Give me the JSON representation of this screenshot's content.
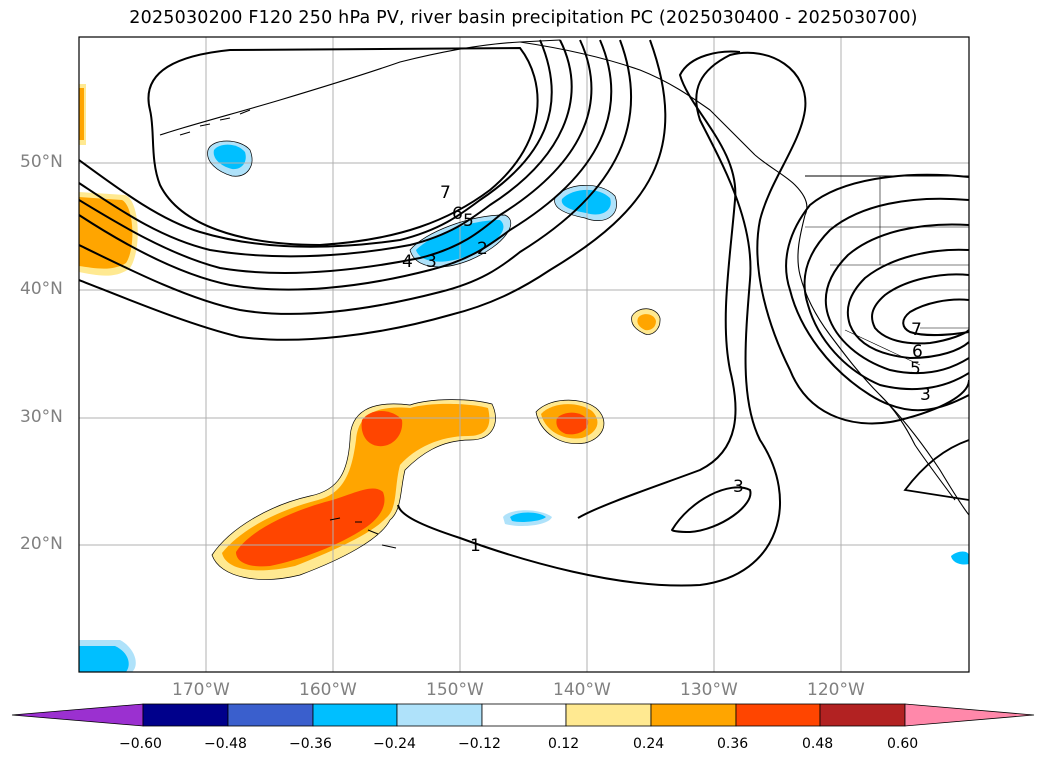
{
  "title": "2025030200 F120 250 hPa PV, river basin precipitation PC (2025030400 - 2025030700)",
  "lat_labels": [
    "50°N",
    "40°N",
    "30°N",
    "20°N"
  ],
  "lon_labels": [
    "170°W",
    "160°W",
    "150°W",
    "140°W",
    "130°W",
    "120°W"
  ],
  "contour_labels": [
    "7",
    "6",
    "5",
    "4",
    "3",
    "2",
    "1",
    "3",
    "7",
    "6",
    "5",
    "3"
  ],
  "colorbar": {
    "ticks": [
      "−0.60",
      "−0.48",
      "−0.36",
      "−0.24",
      "−0.12",
      "0.12",
      "0.24",
      "0.36",
      "0.48",
      "0.60"
    ],
    "colors": [
      "#9b30d0",
      "#00008b",
      "#3a5fcd",
      "#00bfff",
      "#afe2fa",
      "#ffffff",
      "#ffe991",
      "#ffa500",
      "#ff4500",
      "#b22222",
      "#ff88aa"
    ]
  },
  "colors": {
    "precip_neg_strong": "#00bfff",
    "precip_neg_weak": "#afe2fa",
    "precip_pos_weak": "#ffe991",
    "precip_pos_mid": "#ffa500",
    "precip_pos_strong": "#ff4500",
    "grid": "#b0b0b0",
    "axis_label": "#808080"
  }
}
